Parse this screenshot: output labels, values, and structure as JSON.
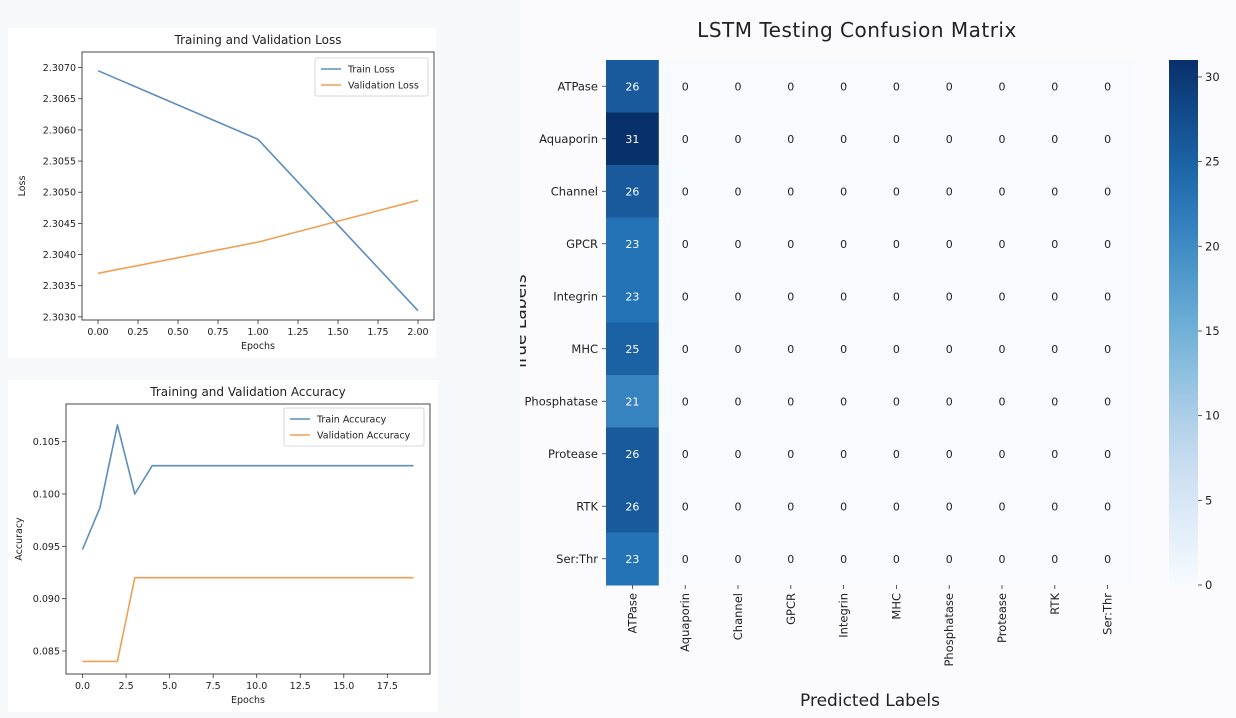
{
  "chart_data": [
    {
      "type": "line",
      "title": "Training and Validation Loss",
      "xlabel": "Epochs",
      "ylabel": "Loss",
      "xlim": [
        -0.1,
        2.1
      ],
      "ylim": [
        2.30295,
        2.30725
      ],
      "xticks": [
        0.0,
        0.25,
        0.5,
        0.75,
        1.0,
        1.25,
        1.5,
        1.75,
        2.0
      ],
      "xticklabels": [
        "0.00",
        "0.25",
        "0.50",
        "0.75",
        "1.00",
        "1.25",
        "1.50",
        "1.75",
        "2.00"
      ],
      "yticks": [
        2.303,
        2.3035,
        2.304,
        2.3045,
        2.305,
        2.3055,
        2.306,
        2.3065,
        2.307
      ],
      "yticklabels": [
        "2.3030",
        "2.3035",
        "2.3040",
        "2.3045",
        "2.3050",
        "2.3055",
        "2.3060",
        "2.3065",
        "2.3070"
      ],
      "grid": false,
      "legend": "upper right",
      "series": [
        {
          "name": "Train Loss",
          "color": "#5b8dbd",
          "x": [
            0,
            1,
            2
          ],
          "y": [
            2.30695,
            2.30585,
            2.3031
          ]
        },
        {
          "name": "Validation Loss",
          "color": "#f0a054",
          "x": [
            0,
            1,
            2
          ],
          "y": [
            2.3037,
            2.3042,
            2.30487
          ]
        }
      ]
    },
    {
      "type": "line",
      "title": "Training and Validation Accuracy",
      "xlabel": "Epochs",
      "ylabel": "Accuracy",
      "xlim": [
        -0.95,
        19.95
      ],
      "ylim": [
        0.0828,
        0.1086
      ],
      "xticks": [
        0.0,
        2.5,
        5.0,
        7.5,
        10.0,
        12.5,
        15.0,
        17.5
      ],
      "xticklabels": [
        "0.0",
        "2.5",
        "5.0",
        "7.5",
        "10.0",
        "12.5",
        "15.0",
        "17.5"
      ],
      "yticks": [
        0.085,
        0.09,
        0.095,
        0.1,
        0.105
      ],
      "yticklabels": [
        "0.085",
        "0.090",
        "0.095",
        "0.100",
        "0.105"
      ],
      "grid": false,
      "legend": "upper right",
      "series": [
        {
          "name": "Train Accuracy",
          "color": "#5b8dbd",
          "x": [
            0,
            1,
            2,
            3,
            4,
            5,
            6,
            7,
            8,
            9,
            10,
            11,
            12,
            13,
            14,
            15,
            16,
            17,
            18,
            19
          ],
          "y": [
            0.0947,
            0.0987,
            0.1066,
            0.1,
            0.1027,
            0.1027,
            0.1027,
            0.1027,
            0.1027,
            0.1027,
            0.1027,
            0.1027,
            0.1027,
            0.1027,
            0.1027,
            0.1027,
            0.1027,
            0.1027,
            0.1027,
            0.1027
          ]
        },
        {
          "name": "Validation Accuracy",
          "color": "#f0a054",
          "x": [
            0,
            1,
            2,
            3,
            4,
            5,
            6,
            7,
            8,
            9,
            10,
            11,
            12,
            13,
            14,
            15,
            16,
            17,
            18,
            19
          ],
          "y": [
            0.084,
            0.084,
            0.084,
            0.092,
            0.092,
            0.092,
            0.092,
            0.092,
            0.092,
            0.092,
            0.092,
            0.092,
            0.092,
            0.092,
            0.092,
            0.092,
            0.092,
            0.092,
            0.092,
            0.092
          ]
        }
      ]
    },
    {
      "type": "heatmap",
      "title": "LSTM Testing Confusion Matrix",
      "xlabel": "Predicted Labels",
      "ylabel": "True Labels",
      "x_categories": [
        "ATPase",
        "Aquaporin",
        "Channel",
        "GPCR",
        "Integrin",
        "MHC",
        "Phosphatase",
        "Protease",
        "RTK",
        "Ser:Thr"
      ],
      "y_categories": [
        "ATPase",
        "Aquaporin",
        "Channel",
        "GPCR",
        "Integrin",
        "MHC",
        "Phosphatase",
        "Protease",
        "RTK",
        "Ser:Thr"
      ],
      "values": [
        [
          26,
          0,
          0,
          0,
          0,
          0,
          0,
          0,
          0,
          0
        ],
        [
          31,
          0,
          0,
          0,
          0,
          0,
          0,
          0,
          0,
          0
        ],
        [
          26,
          0,
          0,
          0,
          0,
          0,
          0,
          0,
          0,
          0
        ],
        [
          23,
          0,
          0,
          0,
          0,
          0,
          0,
          0,
          0,
          0
        ],
        [
          23,
          0,
          0,
          0,
          0,
          0,
          0,
          0,
          0,
          0
        ],
        [
          25,
          0,
          0,
          0,
          0,
          0,
          0,
          0,
          0,
          0
        ],
        [
          21,
          0,
          0,
          0,
          0,
          0,
          0,
          0,
          0,
          0
        ],
        [
          26,
          0,
          0,
          0,
          0,
          0,
          0,
          0,
          0,
          0
        ],
        [
          26,
          0,
          0,
          0,
          0,
          0,
          0,
          0,
          0,
          0
        ],
        [
          23,
          0,
          0,
          0,
          0,
          0,
          0,
          0,
          0,
          0
        ]
      ],
      "colorbar": {
        "min": 0,
        "max": 31,
        "ticks": [
          0,
          5,
          10,
          15,
          20,
          25,
          30
        ],
        "colormap": "Blues"
      },
      "annotations": true
    }
  ]
}
